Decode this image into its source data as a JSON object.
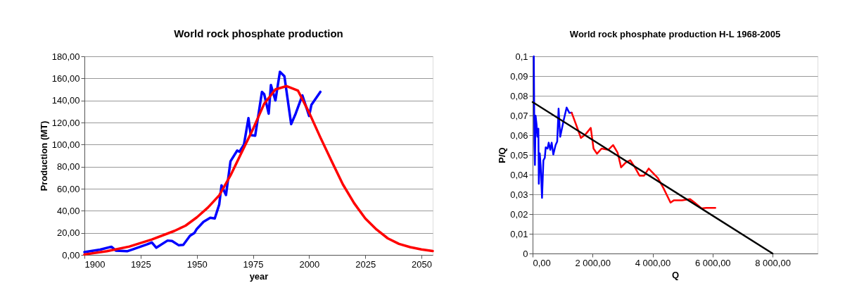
{
  "chart_data": [
    {
      "type": "line",
      "title": "World rock phosphate production",
      "xlabel": "year",
      "ylabel": "Production (MT)",
      "xlim": [
        1900,
        2055
      ],
      "xticks": [
        1900,
        1925,
        1950,
        1975,
        2000,
        2025,
        2050
      ],
      "ylim": [
        0,
        180
      ],
      "yticks": [
        {
          "value": 0,
          "label": "0,00"
        },
        {
          "value": 20,
          "label": "20,00"
        },
        {
          "value": 40,
          "label": "40,00"
        },
        {
          "value": 60,
          "label": "60,00"
        },
        {
          "value": 80,
          "label": "80,00"
        },
        {
          "value": 100,
          "label": "100,00"
        },
        {
          "value": 120,
          "label": "120,00"
        },
        {
          "value": 140,
          "label": "140,00"
        },
        {
          "value": 160,
          "label": "160,00"
        },
        {
          "value": 180,
          "label": "180,00"
        }
      ],
      "grid": "y",
      "marker": "none",
      "line_style": "solid",
      "series": [
        {
          "color": "#0000ff",
          "x": [
            1900,
            1907,
            1912,
            1914,
            1919,
            1922,
            1928,
            1930,
            1932,
            1937,
            1939,
            1942,
            1944,
            1947,
            1949,
            1950,
            1953,
            1956,
            1958,
            1960,
            1961,
            1963,
            1965,
            1968,
            1969,
            1971,
            1973,
            1974,
            1976,
            1979,
            1980,
            1982,
            1983,
            1985,
            1987,
            1989,
            1992,
            1994,
            1997,
            2000,
            2001,
            2005
          ],
          "values": [
            2.6,
            4.8,
            7.4,
            3.9,
            3.3,
            5.4,
            9.6,
            11.3,
            6.5,
            13,
            12.6,
            8.7,
            9.1,
            17.4,
            20,
            23.5,
            30,
            33.7,
            33,
            45.7,
            63,
            54.3,
            84.8,
            94.6,
            93.5,
            100,
            124,
            108.7,
            108,
            147.8,
            145.7,
            128,
            154,
            140,
            166,
            162,
            118.5,
            128,
            144.6,
            126,
            135.9,
            147.8
          ]
        },
        {
          "color": "#ff0000",
          "x": [
            1900,
            1910,
            1920,
            1930,
            1940,
            1945,
            1950,
            1955,
            1960,
            1965,
            1970,
            1975,
            1980,
            1985,
            1990,
            1995,
            2000,
            2005,
            2010,
            2015,
            2020,
            2025,
            2030,
            2035,
            2040,
            2045,
            2050,
            2055
          ],
          "values": [
            0.4,
            3.3,
            7.6,
            14,
            21.7,
            26.5,
            34,
            43,
            54,
            72,
            93,
            114,
            137,
            150,
            153,
            149,
            129,
            106.5,
            85,
            64,
            47,
            33,
            23,
            15,
            10,
            7,
            5,
            3.5
          ]
        }
      ]
    },
    {
      "type": "line",
      "title": "World rock phosphate production H-L 1968-2005",
      "xlabel": "Q",
      "ylabel": "P/Q",
      "xlim": [
        0,
        9500
      ],
      "xticks": [
        {
          "value": 0,
          "label": "0,00"
        },
        {
          "value": 2000,
          "label": "2 000,00"
        },
        {
          "value": 4000,
          "label": "4 000,00"
        },
        {
          "value": 6000,
          "label": "6 000,00"
        },
        {
          "value": 8000,
          "label": "8 000,00"
        }
      ],
      "ylim": [
        0,
        0.1
      ],
      "yticks": [
        0,
        {
          "value": 0.01,
          "label": "0,01"
        },
        {
          "value": 0.02,
          "label": "0,02"
        },
        {
          "value": 0.03,
          "label": "0,03"
        },
        {
          "value": 0.04,
          "label": "0,04"
        },
        {
          "value": 0.05,
          "label": "0,05"
        },
        {
          "value": 0.06,
          "label": "0,06"
        },
        {
          "value": 0.07,
          "label": "0,07"
        },
        {
          "value": 0.08,
          "label": "0,08"
        },
        {
          "value": 0.09,
          "label": "0,09"
        },
        {
          "value": 0.1,
          "label": "0,1"
        }
      ],
      "grid": "y",
      "marker": "none",
      "line_style": "solid",
      "series": [
        {
          "color": "#0000ff",
          "x": [
            40,
            61,
            77,
            100,
            130,
            161,
            192,
            207,
            238,
            268,
            314,
            360,
            406,
            437,
            498,
            536,
            590,
            636,
            690,
            766,
            820,
            866,
            920,
            1034,
            1134,
            1226,
            1303
          ],
          "values": [
            0.1,
            0.0556,
            0.0449,
            0.0699,
            0.0657,
            0.0592,
            0.0633,
            0.0354,
            0.0508,
            0.0449,
            0.0282,
            0.0473,
            0.0485,
            0.0538,
            0.0532,
            0.0562,
            0.0526,
            0.0562,
            0.0502,
            0.055,
            0.0568,
            0.0735,
            0.0592,
            0.0675,
            0.074,
            0.0713,
            0.0714
          ]
        },
        {
          "color": "#ff0000",
          "x": [
            1303,
            1456,
            1609,
            1763,
            1939,
            2031,
            2146,
            2299,
            2529,
            2682,
            2835,
            2950,
            3104,
            3257,
            3410,
            3563,
            3717,
            3870,
            4023,
            4176,
            4368,
            4598,
            4713,
            4981,
            5249,
            5402,
            5632,
            5786,
            6092
          ],
          "values": [
            0.0714,
            0.0651,
            0.0586,
            0.0604,
            0.0637,
            0.0532,
            0.0506,
            0.0532,
            0.0526,
            0.055,
            0.0511,
            0.0437,
            0.0461,
            0.0473,
            0.0437,
            0.0395,
            0.0395,
            0.0431,
            0.0407,
            0.0383,
            0.033,
            0.0258,
            0.027,
            0.027,
            0.0276,
            0.0258,
            0.0229,
            0.0231,
            0.0231
          ]
        },
        {
          "color": "#000000",
          "x": [
            0,
            8000
          ],
          "values": [
            0.0768,
            0
          ]
        }
      ]
    }
  ]
}
